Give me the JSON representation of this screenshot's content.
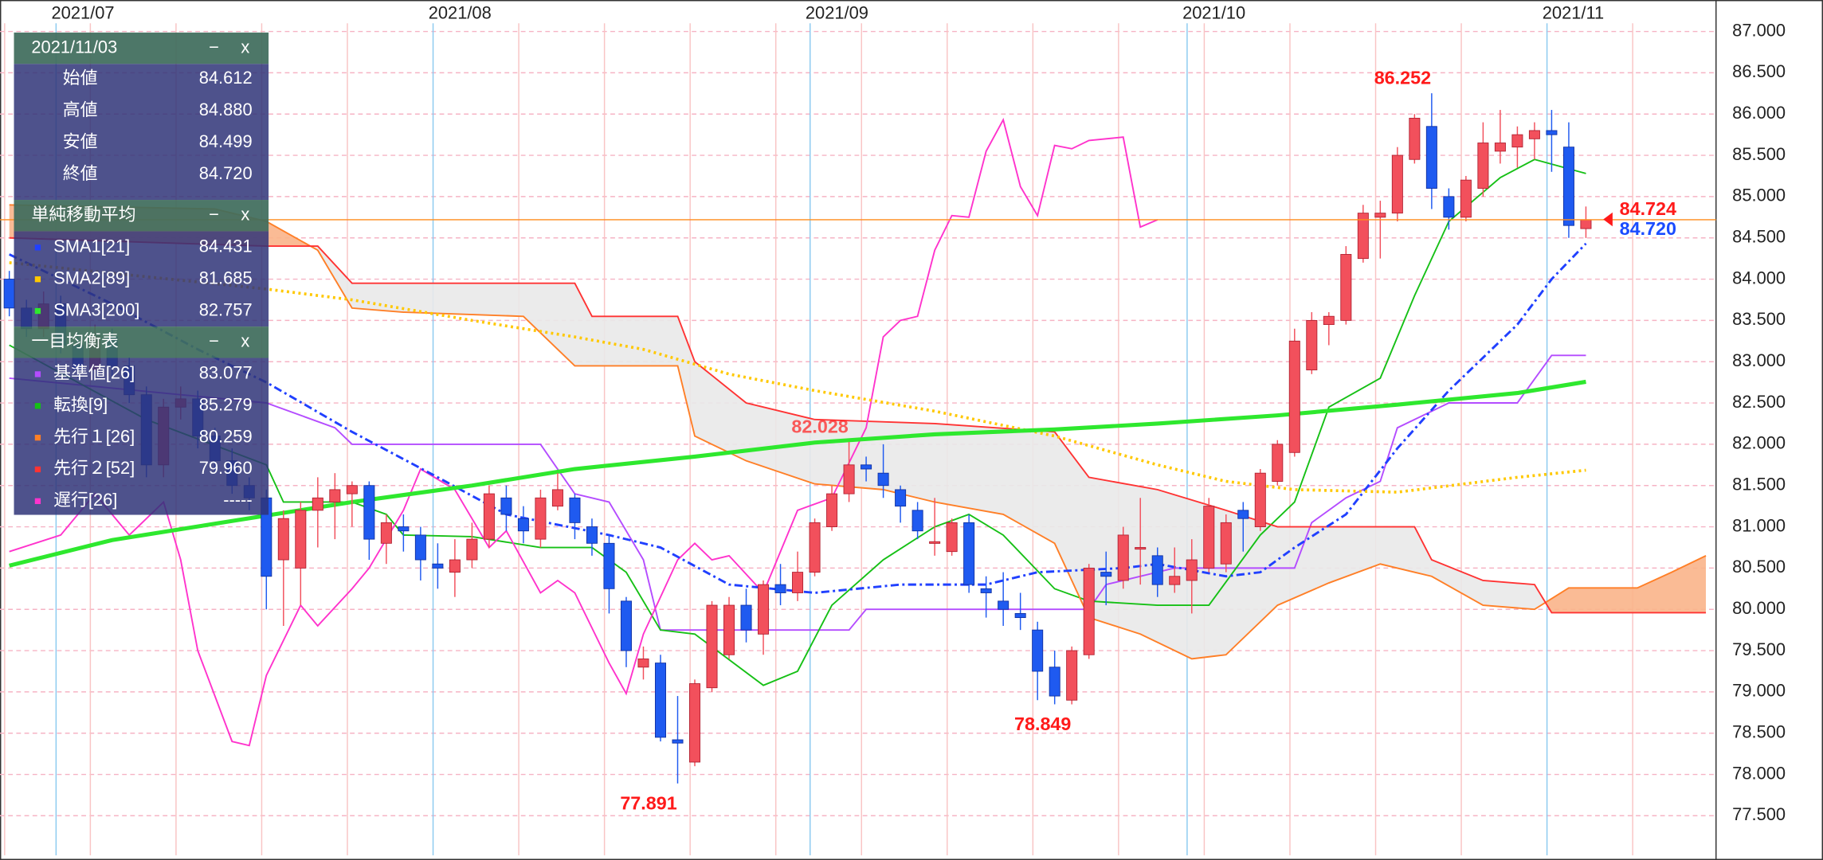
{
  "chart_data": {
    "type": "candlestick",
    "categories": [
      null,
      null,
      null,
      "2021/07",
      null,
      null,
      null,
      null,
      null,
      null,
      null,
      null,
      null,
      null,
      null,
      null,
      null,
      null,
      null,
      null,
      null,
      null,
      null,
      null,
      null,
      "2021/08",
      null,
      null,
      null,
      null,
      null,
      null,
      null,
      null,
      null,
      null,
      null,
      null,
      null,
      null,
      null,
      null,
      null,
      null,
      null,
      null,
      null,
      "2021/09",
      null,
      null,
      null,
      null,
      null,
      null,
      null,
      null,
      null,
      null,
      null,
      null,
      null,
      null,
      null,
      null,
      null,
      null,
      null,
      null,
      null,
      "2021/10",
      null,
      null,
      null,
      null,
      null,
      null,
      null,
      null,
      null,
      null,
      null,
      null,
      null,
      null,
      null,
      null,
      null,
      null,
      null,
      null,
      "2021/11",
      null,
      null,
      null,
      null,
      null,
      null,
      null,
      null,
      null
    ],
    "open": [
      84.0,
      83.65,
      83.4,
      83.7,
      83.2,
      82.9,
      83.3,
      82.95,
      82.6,
      81.75,
      82.45,
      82.55,
      82.1,
      81.8,
      81.5,
      81.35,
      80.6,
      80.5,
      81.2,
      81.3,
      81.4,
      81.5,
      80.8,
      81.0,
      80.9,
      80.55,
      80.45,
      80.6,
      80.85,
      81.35,
      81.1,
      80.85,
      81.25,
      81.35,
      81.0,
      80.8,
      80.1,
      79.3,
      79.35,
      78.42,
      78.15,
      79.05,
      79.45,
      80.05,
      79.7,
      80.3,
      80.2,
      80.45,
      81.0,
      81.4,
      81.75,
      81.65,
      81.45,
      81.2,
      80.8,
      80.7,
      81.05,
      80.25,
      80.1,
      79.95,
      79.75,
      79.3,
      78.9,
      79.45,
      80.45,
      80.35,
      80.75,
      80.65,
      80.3,
      80.35,
      80.5,
      80.55,
      81.2,
      81.0,
      81.55,
      81.9,
      82.9,
      83.45,
      83.5,
      84.25,
      84.75,
      84.8,
      85.45,
      85.85,
      85.0,
      84.75,
      85.1,
      85.55,
      85.6,
      85.7,
      85.8,
      85.6,
      84.612,
      null,
      null,
      null,
      null,
      null,
      null,
      null
    ],
    "high": [
      84.1,
      83.75,
      83.85,
      83.8,
      83.35,
      83.45,
      83.4,
      83.05,
      82.7,
      82.55,
      82.7,
      82.65,
      82.2,
      81.95,
      81.6,
      81.45,
      81.2,
      81.3,
      81.6,
      81.65,
      81.55,
      81.55,
      81.15,
      81.15,
      81.0,
      80.8,
      80.85,
      81.05,
      81.5,
      81.5,
      81.25,
      81.45,
      81.65,
      81.4,
      81.1,
      80.9,
      80.15,
      79.55,
      79.45,
      78.95,
      79.15,
      80.1,
      80.15,
      80.25,
      80.35,
      80.55,
      80.7,
      81.1,
      81.5,
      82.028,
      81.85,
      82.0,
      81.5,
      81.3,
      81.35,
      81.1,
      81.15,
      80.4,
      80.45,
      80.2,
      79.85,
      79.5,
      79.55,
      80.55,
      80.7,
      81.0,
      81.35,
      80.75,
      80.75,
      80.85,
      81.35,
      81.15,
      81.3,
      81.7,
      82.05,
      83.4,
      83.6,
      83.6,
      84.4,
      84.9,
      84.95,
      85.6,
      86.0,
      86.252,
      85.1,
      85.25,
      85.9,
      86.05,
      85.85,
      85.9,
      86.05,
      85.9,
      84.88,
      null,
      null,
      null,
      null,
      null,
      null,
      null
    ],
    "low": [
      83.55,
      83.3,
      83.3,
      83.1,
      82.8,
      82.85,
      82.8,
      82.5,
      81.6,
      81.6,
      82.3,
      81.95,
      81.65,
      81.4,
      81.2,
      80.0,
      79.8,
      80.05,
      80.75,
      80.85,
      81.0,
      80.6,
      80.55,
      80.7,
      80.35,
      80.25,
      80.15,
      80.5,
      80.75,
      80.95,
      80.8,
      80.75,
      81.2,
      80.85,
      80.65,
      79.95,
      79.3,
      79.15,
      78.4,
      77.891,
      78.1,
      79.0,
      79.4,
      79.6,
      79.45,
      80.05,
      80.1,
      80.4,
      80.95,
      81.3,
      81.55,
      81.35,
      81.05,
      80.85,
      80.65,
      80.65,
      80.2,
      79.9,
      79.8,
      79.75,
      78.9,
      78.85,
      78.849,
      79.4,
      80.05,
      80.25,
      80.3,
      80.15,
      80.2,
      79.95,
      80.45,
      80.45,
      80.7,
      80.95,
      81.5,
      81.85,
      82.85,
      83.2,
      83.45,
      84.2,
      84.25,
      84.7,
      85.4,
      84.85,
      84.6,
      84.7,
      85.0,
      85.4,
      85.35,
      85.45,
      85.3,
      84.5,
      84.499,
      null,
      null,
      null,
      null,
      null,
      null,
      null
    ],
    "close": [
      83.65,
      83.4,
      83.7,
      83.2,
      82.9,
      83.3,
      82.95,
      82.6,
      81.75,
      82.45,
      82.55,
      82.1,
      81.8,
      81.5,
      81.35,
      80.4,
      81.1,
      81.2,
      81.35,
      81.45,
      81.5,
      80.85,
      81.05,
      80.95,
      80.6,
      80.5,
      80.6,
      80.85,
      81.4,
      81.15,
      80.95,
      81.35,
      81.45,
      81.05,
      80.8,
      80.25,
      79.5,
      79.4,
      78.45,
      78.38,
      79.1,
      80.05,
      80.05,
      79.75,
      80.3,
      80.2,
      80.45,
      81.05,
      81.4,
      81.75,
      81.7,
      81.5,
      81.25,
      80.95,
      80.82,
      81.05,
      80.3,
      80.2,
      80.0,
      79.9,
      79.25,
      78.95,
      79.5,
      80.5,
      80.4,
      80.9,
      80.75,
      80.3,
      80.4,
      80.6,
      81.25,
      81.05,
      81.1,
      81.65,
      82.0,
      83.25,
      83.5,
      83.55,
      84.3,
      84.8,
      84.8,
      85.5,
      85.95,
      85.1,
      84.75,
      85.2,
      85.65,
      85.65,
      85.75,
      85.8,
      85.75,
      84.65,
      84.72,
      null,
      null,
      null,
      null,
      null,
      null,
      null
    ],
    "up_color": "#f2505c",
    "down_color": "#1f5af0",
    "ylim": [
      77.02,
      87.1
    ],
    "yticks": [
      {
        "value": 87,
        "label": "87.000"
      },
      {
        "value": 86.5,
        "label": "86.500"
      },
      {
        "value": 86,
        "label": "86.000"
      },
      {
        "value": 85.5,
        "label": "85.500"
      },
      {
        "value": 85,
        "label": "85.000"
      },
      {
        "value": 84.5,
        "label": "84.500"
      },
      {
        "value": 84,
        "label": "84.000"
      },
      {
        "value": 83.5,
        "label": "83.500"
      },
      {
        "value": 83,
        "label": "83.000"
      },
      {
        "value": 82.5,
        "label": "82.500"
      },
      {
        "value": 82,
        "label": "82.000"
      },
      {
        "value": 81.5,
        "label": "81.500"
      },
      {
        "value": 81,
        "label": "81.000"
      },
      {
        "value": 80.5,
        "label": "80.500"
      },
      {
        "value": 80,
        "label": "80.000"
      },
      {
        "value": 79.5,
        "label": "79.500"
      },
      {
        "value": 79,
        "label": "79.000"
      },
      {
        "value": 78.5,
        "label": "78.500"
      },
      {
        "value": 78,
        "label": "78.000"
      },
      {
        "value": 77.5,
        "label": "77.500"
      }
    ],
    "grid": true,
    "sma": {
      "title": "単純移動平均",
      "series": [
        {
          "name": "SMA1[21]",
          "color": "#2040ff",
          "dash": "dashdot",
          "width": 2,
          "last_label": "84.431",
          "x": [
            0,
            6,
            11,
            15,
            20,
            25,
            29,
            35,
            38,
            42,
            47,
            52,
            57,
            60,
            65,
            67,
            71,
            73,
            75,
            78,
            81,
            84,
            88,
            90,
            92
          ],
          "values": [
            84.3,
            83.7,
            83.15,
            82.75,
            82.15,
            81.6,
            81.15,
            80.9,
            80.75,
            80.3,
            80.2,
            80.3,
            80.3,
            80.45,
            80.5,
            80.55,
            80.4,
            80.45,
            80.75,
            81.15,
            81.95,
            82.65,
            83.45,
            84.0,
            84.431
          ]
        },
        {
          "name": "SMA2[89]",
          "color": "#ffc800",
          "dash": "dotted",
          "width": 2.5,
          "last_label": "81.685",
          "x": [
            0,
            15,
            20,
            27,
            33,
            37,
            42,
            47,
            54,
            61,
            67,
            71,
            75,
            81,
            88,
            92
          ],
          "values": [
            84.2,
            83.88,
            83.75,
            83.5,
            83.3,
            83.15,
            82.85,
            82.65,
            82.4,
            82.1,
            81.75,
            81.55,
            81.45,
            81.42,
            81.6,
            81.685
          ]
        },
        {
          "name": "SMA3[200]",
          "color": "#2ee82e",
          "dash": "solid",
          "width": 3.5,
          "last_label": "82.757",
          "x": [
            0,
            6,
            13,
            20,
            27,
            33,
            40,
            47,
            54,
            61,
            67,
            74,
            81,
            88,
            92
          ],
          "values": [
            80.53,
            80.84,
            81.07,
            81.3,
            81.5,
            81.7,
            81.85,
            82.02,
            82.12,
            82.18,
            82.25,
            82.35,
            82.48,
            82.62,
            82.757
          ]
        }
      ]
    },
    "ichimoku": {
      "title": "一目均衡表",
      "cloud_colors": [
        "#e9e9e9",
        "#f9b48a"
      ],
      "series": [
        {
          "name": "基準値[26]",
          "color": "#b44cff",
          "dash": "solid",
          "width": 1.3,
          "last_label": "83.077",
          "x": [
            0,
            10,
            15,
            19,
            20,
            31,
            33,
            35,
            37,
            38,
            49,
            50,
            63,
            64,
            68,
            75,
            76,
            78,
            80,
            81,
            84,
            88,
            90,
            92
          ],
          "values": [
            82.8,
            82.6,
            82.5,
            82.2,
            82.0,
            82.0,
            81.4,
            81.3,
            80.6,
            79.75,
            79.75,
            80.0,
            80.0,
            80.3,
            80.5,
            80.5,
            81.05,
            81.35,
            81.55,
            82.2,
            82.5,
            82.5,
            83.077,
            83.077
          ]
        },
        {
          "name": "転換[9]",
          "color": "#16c016",
          "dash": "solid",
          "width": 1.3,
          "last_label": "85.279",
          "x": [
            0,
            8,
            15,
            16,
            20,
            22,
            23,
            27,
            31,
            34,
            36,
            38,
            40,
            44,
            46,
            48,
            51,
            54,
            56,
            58,
            61,
            63,
            67,
            70,
            73,
            75,
            77,
            80,
            82,
            84,
            87,
            89,
            92
          ],
          "values": [
            83.2,
            82.3,
            81.75,
            81.3,
            81.3,
            81.15,
            80.9,
            80.88,
            80.75,
            80.75,
            80.45,
            79.75,
            79.7,
            79.08,
            79.25,
            80.05,
            80.6,
            81.0,
            81.15,
            80.9,
            80.25,
            80.1,
            80.05,
            80.05,
            80.9,
            81.3,
            82.45,
            82.8,
            83.8,
            84.7,
            85.23,
            85.45,
            85.279
          ]
        },
        {
          "name": "先行１[26]",
          "color": "#ff7f27",
          "dash": "solid",
          "width": 1.3,
          "last_label": "80.259",
          "cloud": true,
          "x": [
            0,
            12,
            15,
            18,
            20,
            23,
            30,
            33,
            39,
            40,
            43,
            47,
            51,
            54,
            58,
            61,
            63,
            66,
            69,
            71,
            74,
            77,
            80,
            83,
            86,
            89,
            91,
            95,
            97,
            99
          ],
          "values": [
            84.9,
            84.85,
            84.7,
            84.35,
            83.65,
            83.6,
            83.55,
            82.95,
            82.95,
            82.1,
            81.8,
            81.52,
            81.45,
            81.3,
            81.15,
            80.8,
            79.9,
            79.7,
            79.4,
            79.45,
            80.05,
            80.32,
            80.55,
            80.4,
            80.05,
            80.0,
            80.259,
            80.259,
            80.45,
            80.65
          ]
        },
        {
          "name": "先行２[52]",
          "color": "#ff3333",
          "dash": "solid",
          "width": 1.3,
          "last_label": "79.960",
          "cloud": true,
          "x": [
            0,
            15,
            18,
            20,
            33,
            34,
            39,
            40,
            43,
            47,
            54,
            61,
            63,
            67,
            71,
            74,
            82,
            83,
            86,
            89,
            90,
            99
          ],
          "values": [
            84.5,
            84.4,
            84.4,
            83.95,
            83.95,
            83.55,
            83.55,
            83.0,
            82.5,
            82.3,
            82.25,
            82.15,
            81.6,
            81.45,
            81.2,
            81.0,
            81.0,
            80.6,
            80.35,
            80.3,
            79.96,
            79.96
          ]
        },
        {
          "name": "遅行[26]",
          "color": "#ff33cc",
          "dash": "solid",
          "width": 1.3,
          "last_label": "-----",
          "x": [
            0,
            3,
            5,
            7,
            9,
            10,
            11,
            13,
            14,
            15,
            17,
            18,
            20,
            21,
            23,
            24,
            26,
            28,
            29,
            31,
            32,
            33,
            35,
            36,
            37,
            39,
            40,
            41,
            42,
            44,
            46,
            48,
            50,
            51,
            52,
            53,
            54,
            55,
            56,
            57,
            58,
            59,
            60,
            61,
            62,
            63,
            65,
            66,
            67
          ],
          "values": [
            80.7,
            80.9,
            81.4,
            80.9,
            81.3,
            80.6,
            79.5,
            78.4,
            78.35,
            79.2,
            80.05,
            79.8,
            80.25,
            80.5,
            81.2,
            81.7,
            81.45,
            80.75,
            80.95,
            80.2,
            80.35,
            80.2,
            79.35,
            78.98,
            79.7,
            80.6,
            80.8,
            80.6,
            80.65,
            80.2,
            81.2,
            81.35,
            82.2,
            83.3,
            83.5,
            83.55,
            84.35,
            84.77,
            84.75,
            85.55,
            85.93,
            85.12,
            84.77,
            85.62,
            85.58,
            85.68,
            85.72,
            84.63,
            84.72
          ]
        }
      ]
    },
    "extremes": [
      86.252,
      82.028,
      78.849,
      77.891
    ],
    "extreme_color": "#ff1a1a",
    "price_markers": [
      {
        "value": 84.724,
        "color": "#ff1a1a"
      },
      {
        "value": 84.72,
        "label": "84.720",
        "color": "#1a4cff"
      }
    ],
    "price_line_color": "#ff8c1a"
  },
  "info_panel": {
    "date": "2021/11/03",
    "rows": [
      {
        "label": "始値",
        "value": "84.612"
      },
      {
        "label": "高値",
        "value": "84.880"
      },
      {
        "label": "安値",
        "value": "84.499"
      },
      {
        "label": "終値",
        "value": "84.720"
      }
    ]
  },
  "panel_buttons": {
    "minimize": "−",
    "close": "x"
  }
}
